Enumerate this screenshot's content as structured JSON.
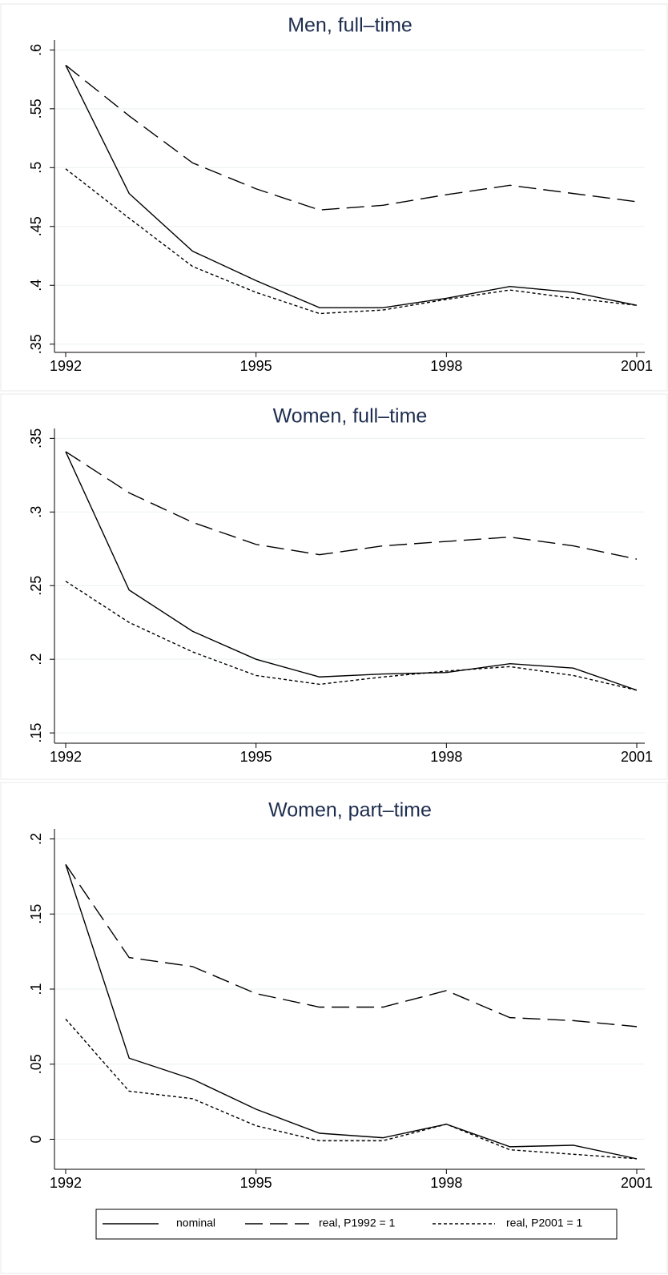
{
  "chart_data": [
    {
      "type": "line",
      "title": "Men, full–time",
      "x": [
        1992,
        1993,
        1994,
        1995,
        1996,
        1997,
        1998,
        1999,
        2000,
        2001
      ],
      "xlim": [
        1992,
        2001
      ],
      "xticks": [
        1992,
        1995,
        1998,
        2001
      ],
      "ylim": [
        0.343,
        0.605
      ],
      "yticks": [
        {
          "value": 0.35,
          "label": ".35"
        },
        {
          "value": 0.4,
          "label": ".4"
        },
        {
          "value": 0.45,
          "label": ".45"
        },
        {
          "value": 0.5,
          "label": ".5"
        },
        {
          "value": 0.55,
          "label": ".55"
        },
        {
          "value": 0.6,
          "label": ".6"
        }
      ],
      "grid": true,
      "series": [
        {
          "color": "#000000",
          "style": "solid",
          "values": [
            0.587,
            0.478,
            0.429,
            0.404,
            0.381,
            0.381,
            0.389,
            0.399,
            0.394,
            0.383
          ]
        },
        {
          "color": "#000000",
          "style": "longdash",
          "values": [
            0.587,
            0.544,
            0.504,
            0.482,
            0.464,
            0.468,
            0.477,
            0.485,
            0.478,
            0.471
          ]
        },
        {
          "color": "#000000",
          "style": "shortdash",
          "values": [
            0.499,
            0.457,
            0.416,
            0.394,
            0.376,
            0.379,
            0.388,
            0.396,
            0.389,
            0.383
          ]
        }
      ]
    },
    {
      "type": "line",
      "title": "Women, full–time",
      "x": [
        1992,
        1993,
        1994,
        1995,
        1996,
        1997,
        1998,
        1999,
        2000,
        2001
      ],
      "xlim": [
        1992,
        2001
      ],
      "xticks": [
        1992,
        1995,
        1998,
        2001
      ],
      "ylim": [
        0.143,
        0.354
      ],
      "yticks": [
        {
          "value": 0.15,
          "label": ".15"
        },
        {
          "value": 0.2,
          "label": ".2"
        },
        {
          "value": 0.25,
          "label": ".25"
        },
        {
          "value": 0.3,
          "label": ".3"
        },
        {
          "value": 0.35,
          "label": ".35"
        }
      ],
      "grid": true,
      "series": [
        {
          "color": "#000000",
          "style": "solid",
          "values": [
            0.341,
            0.247,
            0.219,
            0.2,
            0.188,
            0.19,
            0.191,
            0.197,
            0.194,
            0.179
          ]
        },
        {
          "color": "#000000",
          "style": "longdash",
          "values": [
            0.341,
            0.313,
            0.293,
            0.278,
            0.271,
            0.277,
            0.28,
            0.283,
            0.277,
            0.268
          ]
        },
        {
          "color": "#000000",
          "style": "shortdash",
          "values": [
            0.253,
            0.225,
            0.205,
            0.189,
            0.183,
            0.188,
            0.192,
            0.195,
            0.189,
            0.179
          ]
        }
      ]
    },
    {
      "type": "line",
      "title": "Women, part–time",
      "x": [
        1992,
        1993,
        1994,
        1995,
        1996,
        1997,
        1998,
        1999,
        2000,
        2001
      ],
      "xlim": [
        1992,
        2001
      ],
      "xticks": [
        1992,
        1995,
        1998,
        2001
      ],
      "ylim": [
        -0.02,
        0.204
      ],
      "yticks": [
        0,
        {
          "value": 0.05,
          "label": ".05"
        },
        {
          "value": 0.1,
          "label": ".1"
        },
        {
          "value": 0.15,
          "label": ".15"
        },
        {
          "value": 0.2,
          "label": ".2"
        }
      ],
      "grid": true,
      "series": [
        {
          "name": "nominal",
          "color": "#000000",
          "style": "solid",
          "values": [
            0.183,
            0.054,
            0.04,
            0.02,
            0.004,
            0.001,
            0.01,
            -0.005,
            -0.004,
            -0.013
          ]
        },
        {
          "name": "real, P1992 = 1",
          "color": "#000000",
          "style": "longdash",
          "values": [
            0.183,
            0.121,
            0.115,
            0.097,
            0.088,
            0.088,
            0.099,
            0.081,
            0.079,
            0.075
          ]
        },
        {
          "name": "real, P2001 = 1",
          "color": "#000000",
          "style": "shortdash",
          "values": [
            0.08,
            0.032,
            0.027,
            0.009,
            -0.001,
            -0.001,
            0.01,
            -0.007,
            -0.01,
            -0.013
          ]
        }
      ]
    }
  ]
}
